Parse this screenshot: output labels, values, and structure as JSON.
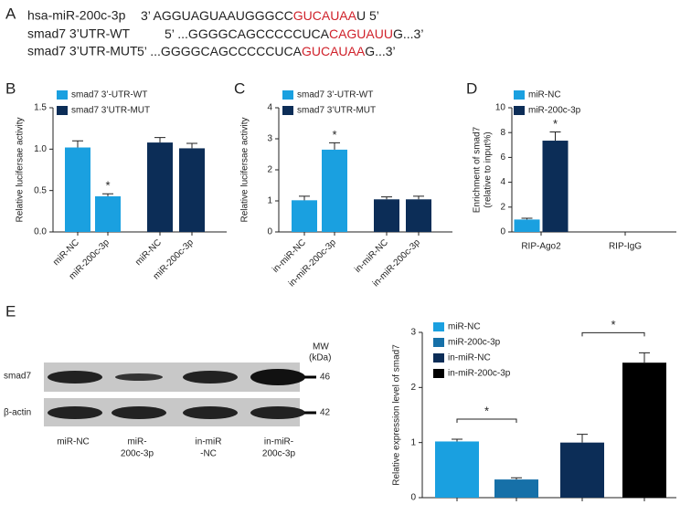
{
  "panel_labels": [
    "A",
    "B",
    "C",
    "D",
    "E"
  ],
  "sequences": [
    {
      "label": "hsa-miR-200c-3p",
      "prefix": "3’ AGGUAGUAAUGGGCC",
      "site": "GUCAUAA",
      "suffix": "U 5’"
    },
    {
      "label": "smad7 3’UTR-WT",
      "prefix": "5’ ...GGGGCAGCCCCCUCA",
      "site": "CAGUAUU",
      "suffix": "G...3’"
    },
    {
      "label": "smad7 3’UTR-MUT",
      "prefix": "5’ ...GGGGCAGCCCCCUCA",
      "site": "GUCAUAA",
      "suffix": "G...3’"
    }
  ],
  "blot": {
    "rows": [
      "smad7",
      "β-actin"
    ],
    "mw_header": [
      "MW",
      "(kDa)"
    ],
    "mw": [
      "46",
      "42"
    ],
    "lanes": [
      [
        "miR-NC"
      ],
      [
        "miR-",
        "200c-3p"
      ],
      [
        "in-miR",
        "-NC"
      ],
      [
        "in-miR-",
        "200c-3p"
      ]
    ]
  },
  "chart_data": [
    {
      "type": "bar",
      "ylabel": [
        "Relative lucifersae activity"
      ],
      "categories": [
        "miR-NC",
        "miR-200c-3p",
        "miR-NC",
        "miR-200c-3p"
      ],
      "ylim": [
        0,
        1.5
      ],
      "yticks": [
        {
          "value": 0,
          "label": "0.0"
        },
        0.5,
        {
          "value": 1,
          "label": "1.0"
        },
        1.5
      ],
      "series": [
        {
          "name": "smad7 3’-UTR-WT",
          "color": "#1aa0e0",
          "values": [
            1.02,
            0.43,
            null,
            null
          ],
          "errors": [
            0.08,
            0.03,
            null,
            null
          ],
          "annotations": [
            null,
            "*",
            null,
            null
          ]
        },
        {
          "name": "smad7 3’UTR-MUT",
          "color": "#0c2d57",
          "values": [
            null,
            null,
            1.08,
            1.01
          ],
          "errors": [
            null,
            null,
            0.06,
            0.06
          ]
        }
      ]
    },
    {
      "type": "bar",
      "ylabel": [
        "Relative lucifersae activity"
      ],
      "categories": [
        "in-miR-NC",
        "in-miR-200c-3p",
        "in-miR-NC",
        "in-miR-200c-3p"
      ],
      "ylim": [
        0,
        4
      ],
      "yticks": [
        0,
        1,
        2,
        3,
        4
      ],
      "series": [
        {
          "name": "smad7 3’-UTR-WT",
          "color": "#1aa0e0",
          "values": [
            1.02,
            2.65,
            null,
            null
          ],
          "errors": [
            0.13,
            0.22,
            null,
            null
          ],
          "annotations": [
            null,
            "*",
            null,
            null
          ]
        },
        {
          "name": "smad7 3’UTR-MUT",
          "color": "#0c2d57",
          "values": [
            null,
            null,
            1.05,
            1.05
          ],
          "errors": [
            null,
            null,
            0.08,
            0.1
          ]
        }
      ]
    },
    {
      "type": "bar",
      "ylabel": [
        "Enrichment of smad7",
        "(relative to input%)"
      ],
      "categories": [
        "RIP-Ago2",
        "RIP-IgG"
      ],
      "ylim": [
        0,
        10
      ],
      "yticks": [
        0,
        2,
        4,
        6,
        8,
        10
      ],
      "series": [
        {
          "name": "miR-NC",
          "color": "#1aa0e0",
          "values": [
            1.0,
            0
          ],
          "errors": [
            0.1,
            null
          ]
        },
        {
          "name": "miR-200c-3p",
          "color": "#0c2d57",
          "values": [
            7.35,
            0
          ],
          "errors": [
            0.7,
            null
          ],
          "annotations": [
            "*",
            null
          ]
        }
      ]
    },
    {
      "type": "bar",
      "ylabel": [
        "Relative expression level of smad7"
      ],
      "categories": [
        null,
        null,
        null,
        null
      ],
      "ylim": [
        0,
        3
      ],
      "yticks": [
        0,
        1,
        2,
        3
      ],
      "series": [
        {
          "name": "miR-NC",
          "color": "#1aa0e0",
          "values": [
            1.02,
            null,
            null,
            null
          ],
          "errors": [
            0.04,
            null,
            null,
            null
          ]
        },
        {
          "name": "miR-200c-3p",
          "color": "#1670a8",
          "values": [
            null,
            0.33,
            null,
            null
          ],
          "errors": [
            null,
            0.03,
            null,
            null
          ]
        },
        {
          "name": "in-miR-NC",
          "color": "#0c2d57",
          "values": [
            null,
            null,
            1.0,
            null
          ],
          "errors": [
            null,
            null,
            0.15,
            null
          ]
        },
        {
          "name": "in-miR-200c-3p",
          "color": "#000000",
          "values": [
            null,
            null,
            null,
            2.45
          ],
          "errors": [
            null,
            null,
            null,
            0.18
          ]
        }
      ],
      "brackets": [
        {
          "from": 0,
          "to": 1,
          "text": "*"
        },
        {
          "from": 2,
          "to": 3,
          "text": "*"
        }
      ]
    }
  ]
}
